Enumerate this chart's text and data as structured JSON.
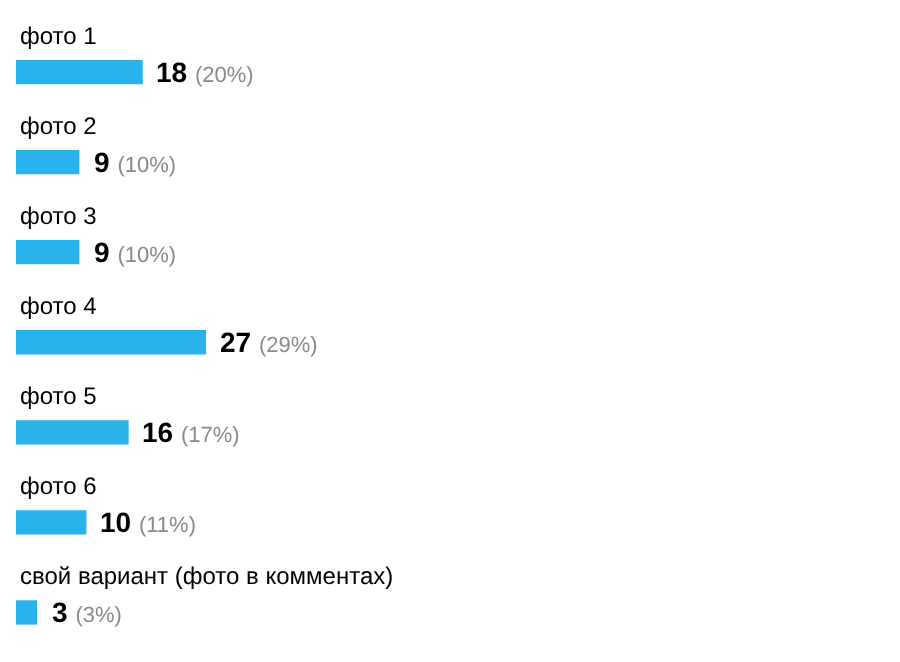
{
  "chart_data": {
    "type": "bar",
    "orientation": "horizontal",
    "categories": [
      "фото 1",
      "фото 2",
      "фото 3",
      "фото 4",
      "фото 5",
      "фото 6",
      "свой вариант (фото в комментах)"
    ],
    "values": [
      18,
      9,
      9,
      27,
      16,
      10,
      3
    ],
    "color": "#29b3ea",
    "value_labels": [
      "18 (20%)",
      "9 (10%)",
      "9 (10%)",
      "27 (29%)",
      "16 (17%)",
      "10 (11%)",
      "3 (3%)"
    ]
  }
}
